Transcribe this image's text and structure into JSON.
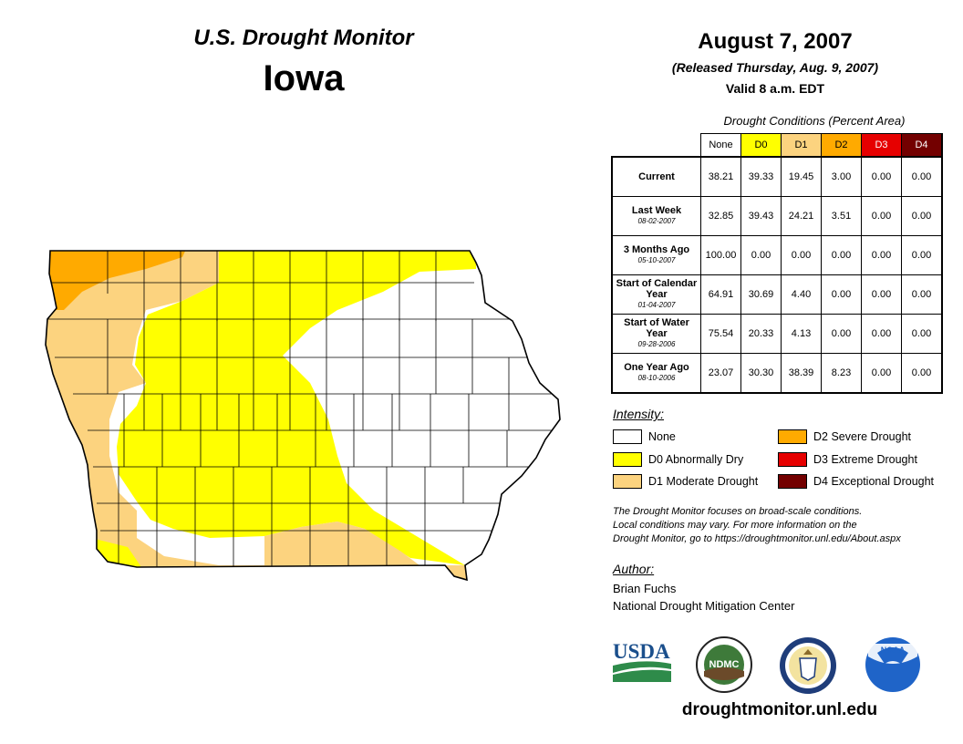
{
  "header": {
    "title": "U.S. Drought Monitor",
    "state": "Iowa",
    "date": "August 7, 2007",
    "released": "(Released Thursday, Aug. 9, 2007)",
    "valid": "Valid 8 a.m. EDT"
  },
  "table": {
    "caption": "Drought Conditions (Percent Area)",
    "columns": [
      "None",
      "D0",
      "D1",
      "D2",
      "D3",
      "D4"
    ],
    "column_colors": [
      "#ffffff",
      "#ffff00",
      "#fcd37f",
      "#ffaa00",
      "#e60000",
      "#730000"
    ],
    "rows": [
      {
        "label": "Current",
        "date": "",
        "values": [
          "38.21",
          "39.33",
          "19.45",
          "3.00",
          "0.00",
          "0.00"
        ]
      },
      {
        "label": "Last Week",
        "date": "08-02-2007",
        "values": [
          "32.85",
          "39.43",
          "24.21",
          "3.51",
          "0.00",
          "0.00"
        ]
      },
      {
        "label": "3 Months Ago",
        "date": "05-10-2007",
        "values": [
          "100.00",
          "0.00",
          "0.00",
          "0.00",
          "0.00",
          "0.00"
        ]
      },
      {
        "label": "Start of Calendar Year",
        "date": "01-04-2007",
        "values": [
          "64.91",
          "30.69",
          "4.40",
          "0.00",
          "0.00",
          "0.00"
        ]
      },
      {
        "label": "Start of Water Year",
        "date": "09-28-2006",
        "values": [
          "75.54",
          "20.33",
          "4.13",
          "0.00",
          "0.00",
          "0.00"
        ]
      },
      {
        "label": "One Year Ago",
        "date": "08-10-2006",
        "values": [
          "23.07",
          "30.30",
          "38.39",
          "8.23",
          "0.00",
          "0.00"
        ]
      }
    ]
  },
  "legend": {
    "title": "Intensity:",
    "items": [
      {
        "label": "None",
        "color": "#ffffff"
      },
      {
        "label": "D0 Abnormally Dry",
        "color": "#ffff00"
      },
      {
        "label": "D1 Moderate Drought",
        "color": "#fcd37f"
      },
      {
        "label": "D2 Severe Drought",
        "color": "#ffaa00"
      },
      {
        "label": "D3 Extreme Drought",
        "color": "#e60000"
      },
      {
        "label": "D4 Exceptional Drought",
        "color": "#730000"
      }
    ]
  },
  "note": {
    "line1": "The Drought Monitor focuses on broad-scale conditions.",
    "line2": "Local conditions may vary. For more information on the",
    "line3": "Drought Monitor, go to https://droughtmonitor.unl.edu/About.aspx"
  },
  "author": {
    "title": "Author:",
    "name": "Brian Fuchs",
    "org": "National Drought Mitigation Center"
  },
  "logos": {
    "usda": "USDA",
    "ndmc": "NDMC",
    "noaa": "NOAA"
  },
  "website": "droughtmonitor.unl.edu"
}
